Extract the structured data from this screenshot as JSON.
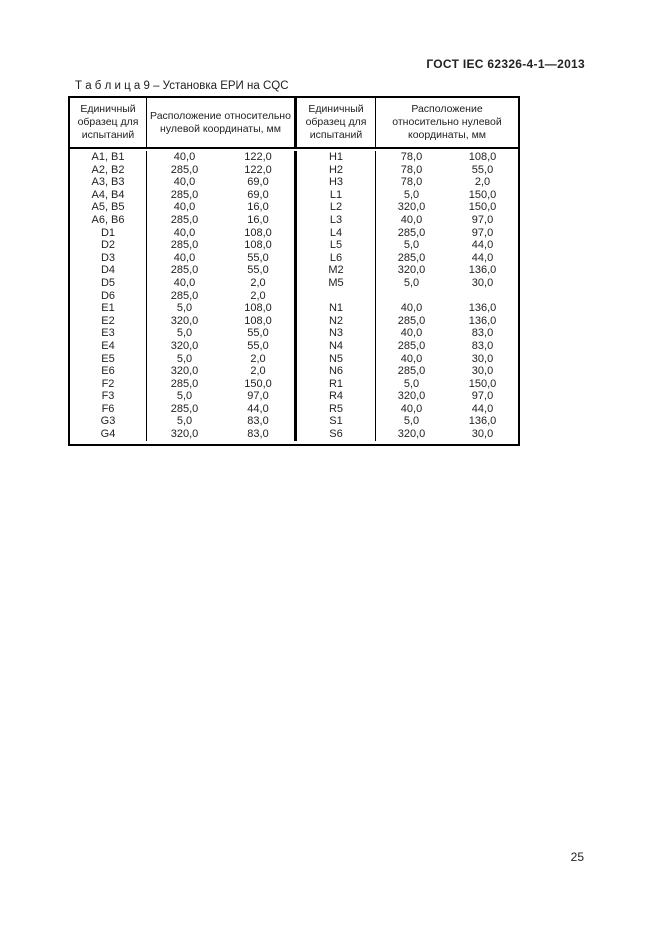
{
  "page": {
    "header_right": "ГОСТ IEC 62326-4-1—2013",
    "page_number": "25"
  },
  "table": {
    "title": "Т а б л и ц а  9 – Установка ЕРИ на CQC",
    "headers": {
      "left_sample": "Единичный\nобразец для\nиспытаний",
      "left_coords": "Расположение относительно\nнулевой координаты, мм",
      "right_sample": "Единичный\nобразец для\nиспытаний",
      "right_coords": "Расположение\nотносительно нулевой\nкоординаты, мм"
    },
    "rows": [
      {
        "l_sample": "A1, B1",
        "l_x": "40,0",
        "l_y": "122,0",
        "r_sample": "H1",
        "r_x": "78,0",
        "r_y": "108,0"
      },
      {
        "l_sample": "A2, B2",
        "l_x": "285,0",
        "l_y": "122,0",
        "r_sample": "H2",
        "r_x": "78,0",
        "r_y": "55,0"
      },
      {
        "l_sample": "A3, B3",
        "l_x": "40,0",
        "l_y": "69,0",
        "r_sample": "H3",
        "r_x": "78,0",
        "r_y": "2,0"
      },
      {
        "l_sample": "A4, B4",
        "l_x": "285,0",
        "l_y": "69,0",
        "r_sample": "L1",
        "r_x": "5,0",
        "r_y": "150,0"
      },
      {
        "l_sample": "A5, B5",
        "l_x": "40,0",
        "l_y": "16,0",
        "r_sample": "L2",
        "r_x": "320,0",
        "r_y": "150,0"
      },
      {
        "l_sample": "A6, B6",
        "l_x": "285,0",
        "l_y": "16,0",
        "r_sample": "L3",
        "r_x": "40,0",
        "r_y": "97,0"
      },
      {
        "l_sample": "D1",
        "l_x": "40,0",
        "l_y": "108,0",
        "r_sample": "L4",
        "r_x": "285,0",
        "r_y": "97,0"
      },
      {
        "l_sample": "D2",
        "l_x": "285,0",
        "l_y": "108,0",
        "r_sample": "L5",
        "r_x": "5,0",
        "r_y": "44,0"
      },
      {
        "l_sample": "D3",
        "l_x": "40,0",
        "l_y": "55,0",
        "r_sample": "L6",
        "r_x": "285,0",
        "r_y": "44,0"
      },
      {
        "l_sample": "D4",
        "l_x": "285,0",
        "l_y": "55,0",
        "r_sample": "M2",
        "r_x": "320,0",
        "r_y": "136,0"
      },
      {
        "l_sample": "D5",
        "l_x": "40,0",
        "l_y": "2,0",
        "r_sample": "M5",
        "r_x": "5,0",
        "r_y": "30,0"
      },
      {
        "l_sample": "D6",
        "l_x": "285,0",
        "l_y": "2,0",
        "r_sample": "",
        "r_x": "",
        "r_y": ""
      },
      {
        "l_sample": "E1",
        "l_x": "5,0",
        "l_y": "108,0",
        "r_sample": "N1",
        "r_x": "40,0",
        "r_y": "136,0"
      },
      {
        "l_sample": "E2",
        "l_x": "320,0",
        "l_y": "108,0",
        "r_sample": "N2",
        "r_x": "285,0",
        "r_y": "136,0"
      },
      {
        "l_sample": "E3",
        "l_x": "5,0",
        "l_y": "55,0",
        "r_sample": "N3",
        "r_x": "40,0",
        "r_y": "83,0"
      },
      {
        "l_sample": "E4",
        "l_x": "320,0",
        "l_y": "55,0",
        "r_sample": "N4",
        "r_x": "285,0",
        "r_y": "83,0"
      },
      {
        "l_sample": "E5",
        "l_x": "5,0",
        "l_y": "2,0",
        "r_sample": "N5",
        "r_x": "40,0",
        "r_y": "30,0"
      },
      {
        "l_sample": "E6",
        "l_x": "320,0",
        "l_y": "2,0",
        "r_sample": "N6",
        "r_x": "285,0",
        "r_y": "30,0"
      },
      {
        "l_sample": "F2",
        "l_x": "285,0",
        "l_y": "150,0",
        "r_sample": "R1",
        "r_x": "5,0",
        "r_y": "150,0"
      },
      {
        "l_sample": "F3",
        "l_x": "5,0",
        "l_y": "97,0",
        "r_sample": "R4",
        "r_x": "320,0",
        "r_y": "97,0"
      },
      {
        "l_sample": "F6",
        "l_x": "285,0",
        "l_y": "44,0",
        "r_sample": "R5",
        "r_x": "40,0",
        "r_y": "44,0"
      },
      {
        "l_sample": "G3",
        "l_x": "5,0",
        "l_y": "83,0",
        "r_sample": "S1",
        "r_x": "5,0",
        "r_y": "136,0"
      },
      {
        "l_sample": "G4",
        "l_x": "320,0",
        "l_y": "83,0",
        "r_sample": "S6",
        "r_x": "320,0",
        "r_y": "30,0"
      }
    ]
  }
}
